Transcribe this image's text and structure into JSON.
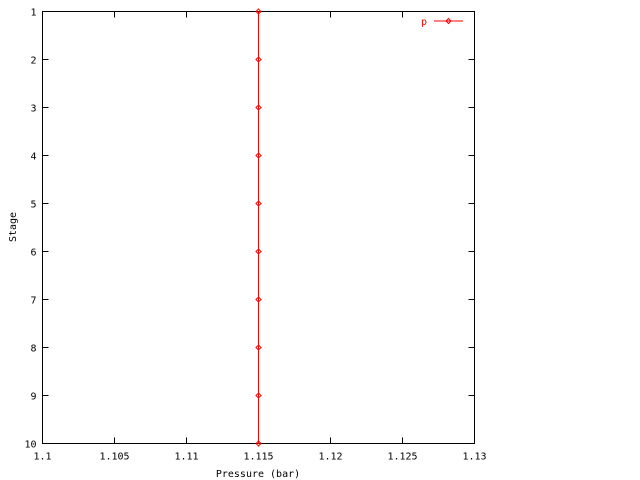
{
  "chart_data": {
    "type": "line",
    "title": "",
    "xlabel": "Pressure (bar)",
    "ylabel": "Stage",
    "xlim": [
      1.1,
      1.13
    ],
    "ylim": [
      10,
      1
    ],
    "y_reversed": true,
    "xticks": [
      "1.1",
      "1.105",
      "1.11",
      "1.115",
      "1.12",
      "1.125",
      "1.13"
    ],
    "yticks": [
      "1",
      "2",
      "3",
      "4",
      "5",
      "6",
      "7",
      "8",
      "9",
      "10"
    ],
    "grid": false,
    "legend_placement": "top-right",
    "series": [
      {
        "name": "p",
        "color": "#ff0000",
        "marker": "diamond",
        "x": [
          1.115,
          1.115,
          1.115,
          1.115,
          1.115,
          1.115,
          1.115,
          1.115,
          1.115,
          1.115
        ],
        "y": [
          1,
          2,
          3,
          4,
          5,
          6,
          7,
          8,
          9,
          10
        ]
      }
    ]
  }
}
